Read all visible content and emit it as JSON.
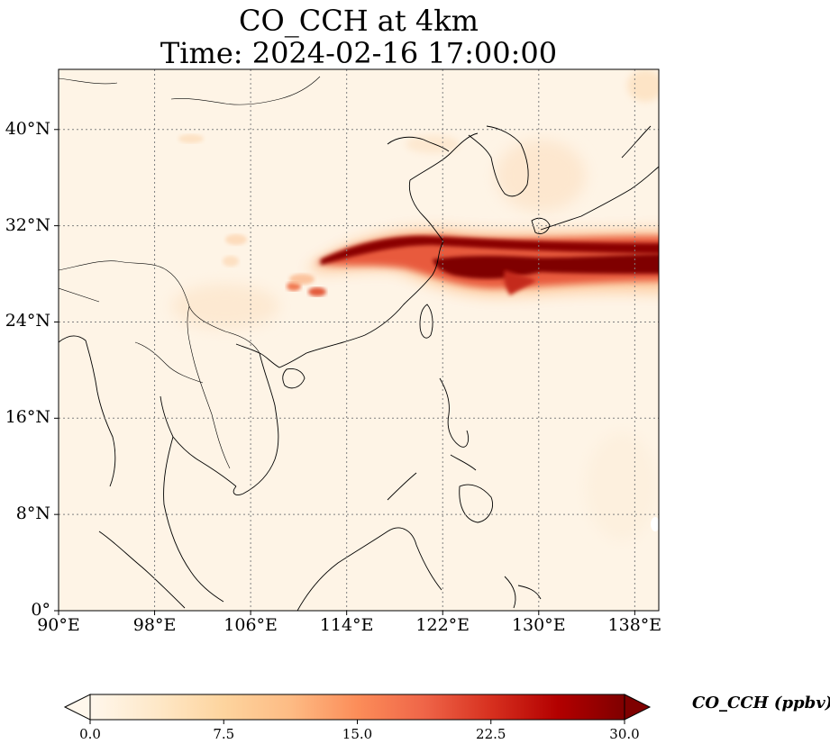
{
  "title_line1": "CO_CCH at 4km",
  "title_line2": "Time: 2024-02-16 17:00:00",
  "map": {
    "lon_range": [
      90,
      140
    ],
    "lat_range": [
      0,
      45
    ],
    "x_ticks": [
      {
        "value": 90,
        "label": "90°E"
      },
      {
        "value": 98,
        "label": "98°E"
      },
      {
        "value": 106,
        "label": "106°E"
      },
      {
        "value": 114,
        "label": "114°E"
      },
      {
        "value": 122,
        "label": "122°E"
      },
      {
        "value": 130,
        "label": "130°E"
      },
      {
        "value": 138,
        "label": "138°E"
      }
    ],
    "y_ticks": [
      {
        "value": 0,
        "label": "0°"
      },
      {
        "value": 8,
        "label": "8°N"
      },
      {
        "value": 16,
        "label": "16°N"
      },
      {
        "value": 24,
        "label": "24°N"
      },
      {
        "value": 32,
        "label": "32°N"
      },
      {
        "value": 40,
        "label": "40°N"
      }
    ],
    "gridlines": true,
    "plume_description_color": "#7f0000"
  },
  "colorbar": {
    "label": "CO_CCH (ppbv)",
    "min": 0.0,
    "max": 30.0,
    "ticks": [
      "0.0",
      "7.5",
      "15.0",
      "22.5",
      "30.0"
    ],
    "extend": "both",
    "colormap": [
      "#fff7ec",
      "#fee8c8",
      "#fdd49e",
      "#fdbb84",
      "#fc8d59",
      "#ef6548",
      "#d7301f",
      "#b30000",
      "#7f0000"
    ]
  }
}
